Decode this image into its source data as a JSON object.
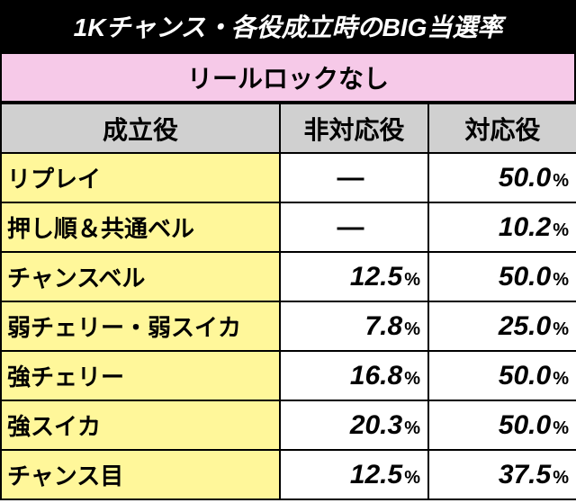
{
  "title": "1Kチャンス・各役成立時のBIG当選率",
  "subtitle": "リールロックなし",
  "headers": {
    "role": "成立役",
    "nonMatch": "非対応役",
    "match": "対応役"
  },
  "rows": [
    {
      "label": "リプレイ",
      "nonMatch": null,
      "match": "50.0"
    },
    {
      "label": "押し順＆共通ベル",
      "nonMatch": null,
      "match": "10.2"
    },
    {
      "label": "チャンスベル",
      "nonMatch": "12.5",
      "match": "50.0"
    },
    {
      "label": "弱チェリー・弱スイカ",
      "nonMatch": "7.8",
      "match": "25.0"
    },
    {
      "label": "強チェリー",
      "nonMatch": "16.8",
      "match": "50.0"
    },
    {
      "label": "強スイカ",
      "nonMatch": "20.3",
      "match": "50.0"
    },
    {
      "label": "チャンス目",
      "nonMatch": "12.5",
      "match": "37.5"
    }
  ],
  "dash": "―",
  "pctSuffix": "%",
  "colors": {
    "titleBg": "#000000",
    "titleFg": "#ffffff",
    "subBg": "#f6c9e8",
    "headerBg": "#d0d0d0",
    "rowHeadBg": "#fff79a",
    "cellBg": "#ffffff",
    "border": "#000000"
  }
}
